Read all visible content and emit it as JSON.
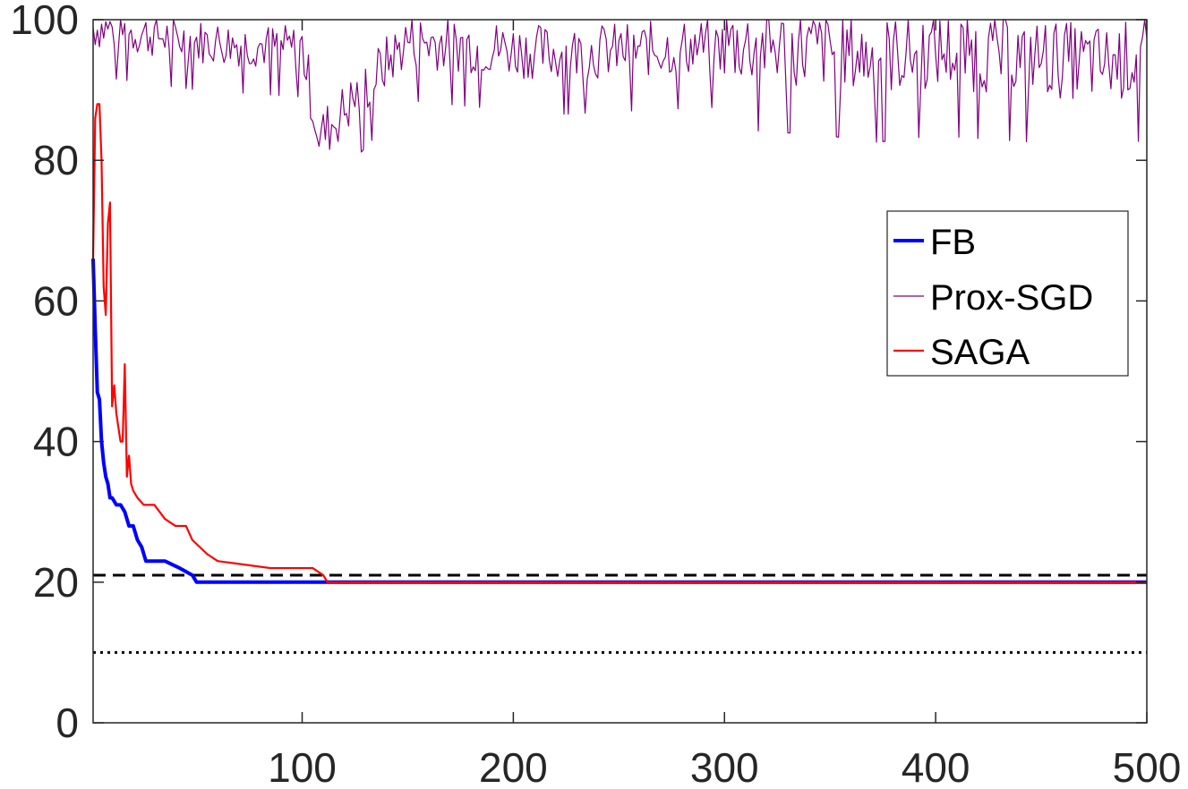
{
  "chart_data": {
    "type": "line",
    "title": "",
    "xlabel": "",
    "ylabel": "",
    "xlim": [
      1,
      500
    ],
    "ylim": [
      0,
      100
    ],
    "xticks": [
      100,
      200,
      300,
      400,
      500
    ],
    "xtick_labels": [
      "100",
      "200",
      "300",
      "400",
      "500"
    ],
    "yticks": [
      0,
      20,
      40,
      60,
      80,
      100
    ],
    "ytick_labels": [
      "0",
      "20",
      "40",
      "60",
      "80",
      "100"
    ],
    "grid": false,
    "legend_position": "right",
    "series": [
      {
        "name": "FB",
        "color": "#0000ff",
        "style": "solid-thick",
        "x": [
          1,
          2,
          3,
          4,
          5,
          6,
          7,
          8,
          9,
          10,
          12,
          14,
          16,
          18,
          20,
          22,
          24,
          26,
          30,
          35,
          42,
          48,
          50,
          100,
          500
        ],
        "y": [
          66,
          56,
          47,
          46,
          40,
          37,
          35,
          34,
          32,
          32,
          31,
          31,
          30,
          28,
          28,
          26,
          25,
          23,
          23,
          23,
          22,
          21,
          20,
          20,
          20
        ]
      },
      {
        "name": "Prox-SGD",
        "color": "#800080",
        "style": "solid-thin",
        "x": [
          1,
          50,
          100,
          108,
          150,
          220,
          290,
          300,
          350,
          370,
          400,
          450,
          480,
          495,
          500
        ],
        "y": [
          98,
          96,
          95,
          82,
          96,
          94,
          95,
          95,
          94,
          93,
          94,
          93,
          92,
          93,
          94
        ]
      },
      {
        "name": "SAGA",
        "color": "#ff0000",
        "style": "solid",
        "x": [
          1,
          2,
          3,
          4,
          5,
          6,
          7,
          8,
          9,
          10,
          11,
          12,
          13,
          14,
          15,
          16,
          17,
          18,
          19,
          20,
          22,
          25,
          30,
          35,
          40,
          45,
          48,
          55,
          60,
          85,
          105,
          110,
          112,
          500
        ],
        "y": [
          66,
          86,
          88,
          88,
          80,
          62,
          58,
          71,
          74,
          45,
          48,
          44,
          42,
          40,
          40,
          51,
          35,
          38,
          34,
          33,
          32,
          31,
          31,
          29,
          28,
          28,
          26,
          24,
          23,
          22,
          22,
          21,
          20,
          20
        ]
      }
    ],
    "reference_lines": [
      {
        "style": "dashed",
        "y": 21
      },
      {
        "style": "dotted",
        "y": 10
      }
    ]
  }
}
